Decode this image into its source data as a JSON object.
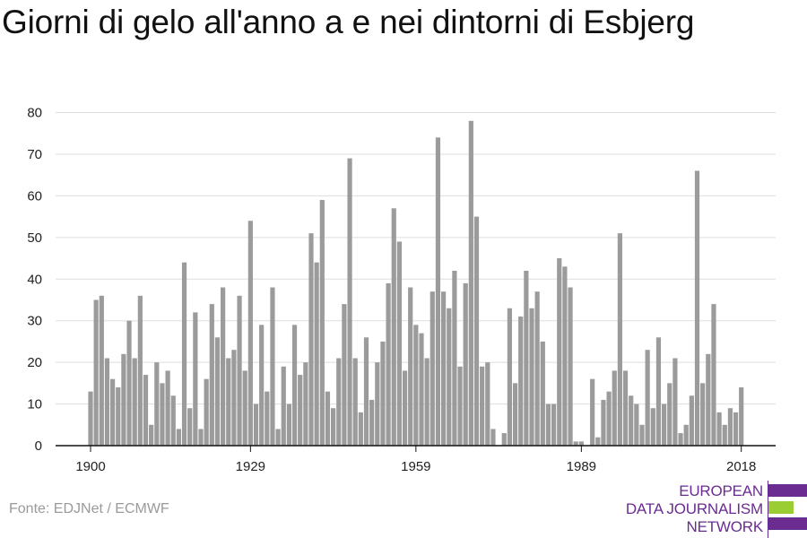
{
  "title": "Giorni di gelo all'anno a e nei dintorni di Esbjerg",
  "source": "Fonte: EDJNet / ECMWF",
  "logo": {
    "lines": [
      "EUROPEAN",
      "DATA JOURNALISM",
      "NETWORK"
    ],
    "colors": {
      "purple": "#6a2c91",
      "green": "#9acd32"
    }
  },
  "colors": {
    "bar": "#9b9b9b",
    "grid": "#dddddd",
    "axis": "#111111",
    "text": "#222222"
  },
  "chart_data": {
    "type": "bar",
    "title": "Giorni di gelo all'anno a e nei dintorni di Esbjerg",
    "xlabel": "",
    "ylabel": "",
    "ylim": [
      0,
      80
    ],
    "yticks": [
      0,
      10,
      20,
      30,
      40,
      50,
      60,
      70,
      80
    ],
    "xticks": [
      "1900",
      "1929",
      "1959",
      "1989",
      "2018"
    ],
    "grid": true,
    "categories": [
      1900,
      1901,
      1902,
      1903,
      1904,
      1905,
      1906,
      1907,
      1908,
      1909,
      1910,
      1911,
      1912,
      1913,
      1914,
      1915,
      1916,
      1917,
      1918,
      1919,
      1920,
      1921,
      1922,
      1923,
      1924,
      1925,
      1926,
      1927,
      1928,
      1929,
      1930,
      1931,
      1932,
      1933,
      1934,
      1935,
      1936,
      1937,
      1938,
      1939,
      1940,
      1941,
      1942,
      1943,
      1944,
      1945,
      1946,
      1947,
      1948,
      1949,
      1950,
      1951,
      1952,
      1953,
      1954,
      1955,
      1956,
      1957,
      1958,
      1959,
      1960,
      1961,
      1962,
      1963,
      1964,
      1965,
      1966,
      1967,
      1968,
      1969,
      1970,
      1971,
      1972,
      1973,
      1974,
      1975,
      1976,
      1977,
      1978,
      1979,
      1980,
      1981,
      1982,
      1983,
      1984,
      1985,
      1986,
      1987,
      1988,
      1989,
      1990,
      1991,
      1992,
      1993,
      1994,
      1995,
      1996,
      1997,
      1998,
      1999,
      2000,
      2001,
      2002,
      2003,
      2004,
      2005,
      2006,
      2007,
      2008,
      2009,
      2010,
      2011,
      2012,
      2013,
      2014,
      2015,
      2016,
      2017,
      2018
    ],
    "values": [
      13,
      35,
      36,
      21,
      16,
      14,
      22,
      30,
      21,
      36,
      17,
      5,
      20,
      15,
      18,
      12,
      4,
      44,
      9,
      32,
      4,
      16,
      34,
      26,
      38,
      21,
      23,
      36,
      18,
      54,
      10,
      29,
      13,
      38,
      4,
      19,
      10,
      29,
      17,
      20,
      51,
      44,
      59,
      13,
      9,
      21,
      34,
      69,
      21,
      8,
      26,
      11,
      20,
      25,
      39,
      57,
      49,
      18,
      38,
      29,
      27,
      21,
      37,
      74,
      37,
      33,
      42,
      19,
      39,
      78,
      55,
      19,
      20,
      4,
      0,
      3,
      33,
      15,
      31,
      42,
      33,
      37,
      25,
      10,
      10,
      45,
      43,
      38,
      1,
      1,
      0,
      16,
      2,
      11,
      13,
      18,
      51,
      18,
      12,
      10,
      5,
      23,
      9,
      26,
      10,
      15,
      21,
      3,
      5,
      12,
      66,
      15,
      22,
      34,
      8,
      5,
      9,
      8,
      14
    ]
  }
}
